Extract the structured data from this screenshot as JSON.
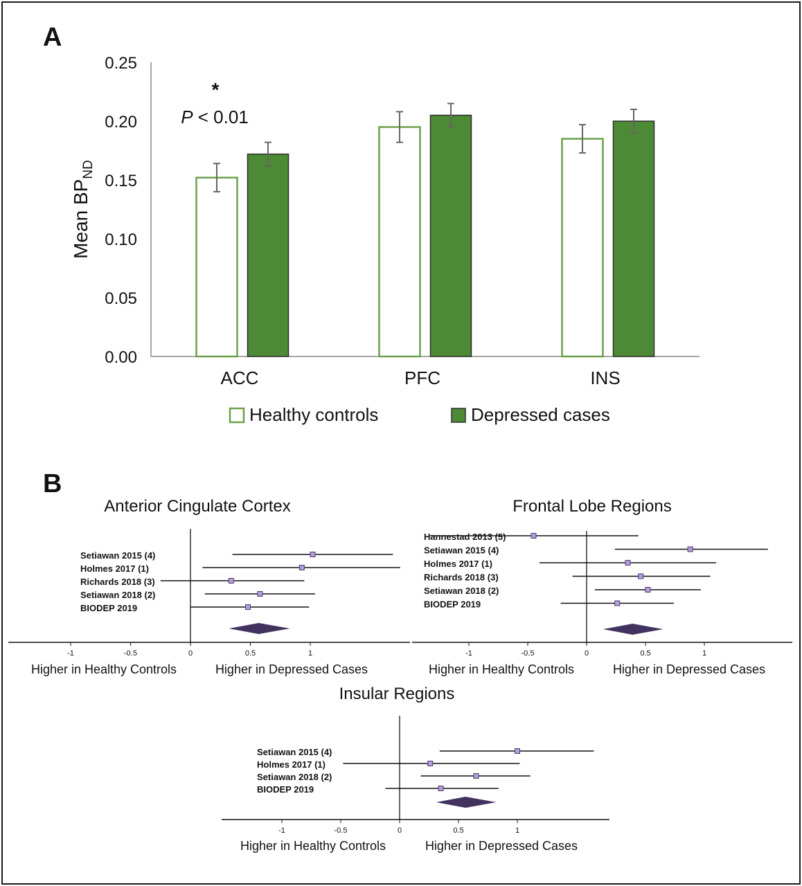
{
  "panel_labels": {
    "a": "A",
    "b": "B"
  },
  "colors": {
    "healthy_outline": "#6aa04a",
    "depressed_fill": "#4d8a35",
    "bar_edge": "#2e2e2e",
    "error_bar": "#666666",
    "forest_point": "#b39ddb",
    "forest_point_edge": "#4a3a6a",
    "diamond": "#41325e",
    "line": "#111111"
  },
  "chart_data": [
    {
      "type": "bar",
      "panel": "A",
      "title": "",
      "xlabel": "",
      "ylabel": "Mean BP",
      "ylabel_subscript": "ND",
      "ylim": [
        0,
        0.25
      ],
      "yticks": [
        "0.00",
        "0.05",
        "0.10",
        "0.15",
        "0.20",
        "0.25"
      ],
      "categories": [
        "ACC",
        "PFC",
        "INS"
      ],
      "series": [
        {
          "name": "Healthy controls",
          "style": "outline",
          "values": [
            0.152,
            0.195,
            0.185
          ],
          "errors": [
            0.012,
            0.013,
            0.012
          ]
        },
        {
          "name": "Depressed cases",
          "style": "filled",
          "values": [
            0.172,
            0.205,
            0.2
          ],
          "errors": [
            0.01,
            0.01,
            0.01
          ]
        }
      ],
      "annotations": [
        {
          "category": "ACC",
          "star": "*",
          "p_prefix": "P",
          "p_text": " < 0.01"
        }
      ],
      "legend_placement": "bottom",
      "grid": false
    },
    {
      "type": "forest",
      "panel": "B",
      "title": "Anterior Cingulate Cortex",
      "xticks": [
        "-1",
        "-0.5",
        "0",
        "0.5",
        "1"
      ],
      "xtick_values": [
        -1,
        -0.5,
        0,
        0.5,
        1
      ],
      "xrange": [
        -1.5,
        1.75
      ],
      "left_label": "Higher in Healthy Controls",
      "right_label": "Higher in Depressed Cases",
      "studies": [
        {
          "label": "Setiawan 2015 (4)",
          "effect": 1.02,
          "ci": [
            0.35,
            1.69
          ]
        },
        {
          "label": "Holmes 2017 (1)",
          "effect": 0.93,
          "ci": [
            0.1,
            1.75
          ]
        },
        {
          "label": "Richards 2018 (3)",
          "effect": 0.34,
          "ci": [
            -0.25,
            0.95
          ]
        },
        {
          "label": "Setiawan 2018 (2)",
          "effect": 0.58,
          "ci": [
            0.12,
            1.04
          ]
        },
        {
          "label": "BIODEP 2019",
          "effect": 0.48,
          "ci": [
            0.0,
            0.99
          ]
        }
      ],
      "pooled": {
        "effect": 0.57,
        "ci": [
          0.32,
          0.83
        ]
      }
    },
    {
      "type": "forest",
      "panel": "B",
      "title": "Frontal Lobe Regions",
      "xticks": [
        "-1",
        "-0.5",
        "0",
        "0.5",
        "1"
      ],
      "xtick_values": [
        -1,
        -0.5,
        0,
        0.5,
        1
      ],
      "xrange": [
        -1.5,
        1.75
      ],
      "left_label": "Higher in Healthy Controls",
      "right_label": "Higher in Depressed Cases",
      "studies": [
        {
          "label": "Hannestad 2013 (5)",
          "effect": -0.45,
          "ci": [
            -1.33,
            0.44
          ]
        },
        {
          "label": "Setiawan 2015 (4)",
          "effect": 0.88,
          "ci": [
            0.24,
            1.54
          ]
        },
        {
          "label": "Holmes 2017 (1)",
          "effect": 0.35,
          "ci": [
            -0.4,
            1.1
          ]
        },
        {
          "label": "Richards 2018 (3)",
          "effect": 0.46,
          "ci": [
            -0.12,
            1.05
          ]
        },
        {
          "label": "Setiawan 2018 (2)",
          "effect": 0.52,
          "ci": [
            0.07,
            0.97
          ]
        },
        {
          "label": "BIODEP 2019",
          "effect": 0.26,
          "ci": [
            -0.22,
            0.74
          ]
        }
      ],
      "pooled": {
        "effect": 0.39,
        "ci": [
          0.14,
          0.65
        ]
      }
    },
    {
      "type": "forest",
      "panel": "B",
      "title": "Insular Regions",
      "xticks": [
        "-1",
        "-0.5",
        "0",
        "0.5",
        "1"
      ],
      "xtick_values": [
        -1,
        -0.5,
        0,
        0.5,
        1
      ],
      "xrange": [
        -1.5,
        1.75
      ],
      "left_label": "Higher in Healthy Controls",
      "right_label": "Higher in Depressed Cases",
      "studies": [
        {
          "label": "Setiawan 2015 (4)",
          "effect": 1.0,
          "ci": [
            0.34,
            1.65
          ]
        },
        {
          "label": "Holmes 2017 (1)",
          "effect": 0.26,
          "ci": [
            -0.48,
            1.02
          ]
        },
        {
          "label": "Setiawan 2018 (2)",
          "effect": 0.65,
          "ci": [
            0.18,
            1.11
          ]
        },
        {
          "label": "BIODEP 2019",
          "effect": 0.35,
          "ci": [
            -0.12,
            0.84
          ]
        }
      ],
      "pooled": {
        "effect": 0.56,
        "ci": [
          0.31,
          0.82
        ]
      }
    }
  ]
}
